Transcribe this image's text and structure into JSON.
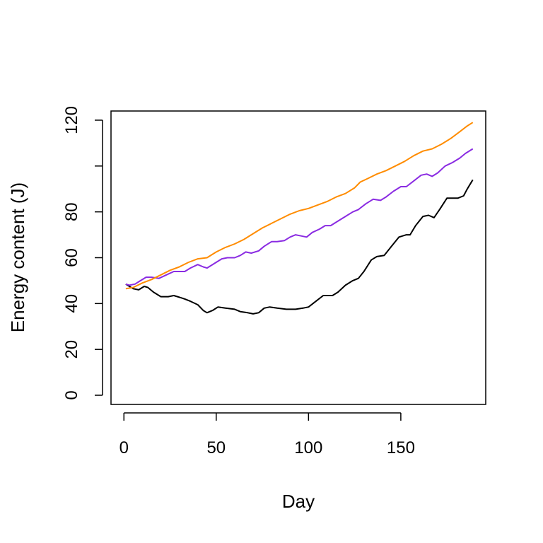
{
  "chart_data": {
    "type": "line",
    "title": "",
    "xlabel": "Day",
    "ylabel": "Energy content (J)",
    "xlim": [
      -7,
      196
    ],
    "ylim": [
      -4,
      124
    ],
    "x_ticks": [
      0,
      50,
      100,
      150
    ],
    "x_tick_labels": [
      "0",
      "50",
      "100",
      "150"
    ],
    "y_ticks": [
      0,
      20,
      40,
      60,
      80,
      100,
      120
    ],
    "y_tick_labels": [
      "0",
      "20",
      "40",
      "60",
      "80",
      "",
      "120"
    ],
    "grid": false,
    "legend": "none",
    "series": [
      {
        "color": "#000000",
        "points": [
          [
            1,
            48.5
          ],
          [
            5,
            46.5
          ],
          [
            8,
            46
          ],
          [
            11,
            47.5
          ],
          [
            13,
            47
          ],
          [
            16,
            45
          ],
          [
            20,
            43
          ],
          [
            24,
            43
          ],
          [
            27,
            43.5
          ],
          [
            31,
            42.5
          ],
          [
            33,
            42
          ],
          [
            36,
            41
          ],
          [
            40,
            39.5
          ],
          [
            43,
            37
          ],
          [
            45,
            36
          ],
          [
            48,
            37
          ],
          [
            51,
            38.5
          ],
          [
            55,
            38
          ],
          [
            60,
            37.5
          ],
          [
            63,
            36.5
          ],
          [
            67,
            36
          ],
          [
            70,
            35.5
          ],
          [
            73,
            36
          ],
          [
            76,
            38
          ],
          [
            79,
            38.5
          ],
          [
            83,
            38
          ],
          [
            88,
            37.5
          ],
          [
            93,
            37.5
          ],
          [
            97,
            38
          ],
          [
            100,
            38.5
          ],
          [
            104,
            41
          ],
          [
            108,
            43.5
          ],
          [
            113,
            43.5
          ],
          [
            116,
            45
          ],
          [
            120,
            48
          ],
          [
            124,
            50
          ],
          [
            127,
            51
          ],
          [
            130,
            54
          ],
          [
            134,
            59
          ],
          [
            137,
            60.5
          ],
          [
            141,
            61
          ],
          [
            145,
            65
          ],
          [
            149,
            69
          ],
          [
            153,
            70
          ],
          [
            155,
            70
          ],
          [
            158,
            74
          ],
          [
            162,
            78
          ],
          [
            165,
            78.5
          ],
          [
            168,
            77.5
          ],
          [
            171,
            81
          ],
          [
            175,
            86
          ],
          [
            178,
            86
          ],
          [
            181,
            86
          ],
          [
            184,
            87
          ],
          [
            186,
            90
          ],
          [
            189,
            94
          ]
        ]
      },
      {
        "color": "#8a2be2",
        "points": [
          [
            1,
            48.5
          ],
          [
            3,
            48
          ],
          [
            6,
            48.5
          ],
          [
            9,
            50
          ],
          [
            12,
            51.5
          ],
          [
            15,
            51.5
          ],
          [
            19,
            51
          ],
          [
            23,
            52.5
          ],
          [
            27,
            54
          ],
          [
            30,
            54
          ],
          [
            33,
            54
          ],
          [
            36,
            55.5
          ],
          [
            40,
            57
          ],
          [
            43,
            56
          ],
          [
            45,
            55.5
          ],
          [
            50,
            58
          ],
          [
            53,
            59.5
          ],
          [
            56,
            60
          ],
          [
            60,
            60
          ],
          [
            63,
            61
          ],
          [
            66,
            62.5
          ],
          [
            69,
            62
          ],
          [
            73,
            63
          ],
          [
            76,
            65
          ],
          [
            80,
            67
          ],
          [
            83,
            67
          ],
          [
            87,
            67.5
          ],
          [
            90,
            69
          ],
          [
            93,
            70
          ],
          [
            96,
            69.5
          ],
          [
            99,
            69
          ],
          [
            102,
            71
          ],
          [
            106,
            72.5
          ],
          [
            109,
            74
          ],
          [
            112,
            74
          ],
          [
            116,
            76
          ],
          [
            120,
            78
          ],
          [
            124,
            80
          ],
          [
            127,
            81
          ],
          [
            131,
            83.5
          ],
          [
            135,
            85.5
          ],
          [
            139,
            85
          ],
          [
            142,
            86.5
          ],
          [
            146,
            89
          ],
          [
            150,
            91
          ],
          [
            153,
            91
          ],
          [
            157,
            93.5
          ],
          [
            161,
            96
          ],
          [
            164,
            96.5
          ],
          [
            167,
            95.5
          ],
          [
            170,
            97
          ],
          [
            174,
            100
          ],
          [
            178,
            101.5
          ],
          [
            182,
            103.5
          ],
          [
            185,
            105.5
          ],
          [
            189,
            107.5
          ]
        ]
      },
      {
        "color": "#ff8c00",
        "points": [
          [
            1,
            46.5
          ],
          [
            5,
            47
          ],
          [
            10,
            49
          ],
          [
            15,
            50.5
          ],
          [
            20,
            52.5
          ],
          [
            25,
            54.5
          ],
          [
            30,
            56
          ],
          [
            35,
            58
          ],
          [
            40,
            59.5
          ],
          [
            45,
            60
          ],
          [
            50,
            62.5
          ],
          [
            55,
            64.5
          ],
          [
            60,
            66
          ],
          [
            65,
            68
          ],
          [
            70,
            70.5
          ],
          [
            75,
            73
          ],
          [
            80,
            75
          ],
          [
            85,
            77
          ],
          [
            90,
            79
          ],
          [
            95,
            80.5
          ],
          [
            100,
            81.5
          ],
          [
            105,
            83
          ],
          [
            110,
            84.5
          ],
          [
            115,
            86.5
          ],
          [
            120,
            88
          ],
          [
            125,
            90.5
          ],
          [
            128,
            93
          ],
          [
            132,
            94.5
          ],
          [
            137,
            96.5
          ],
          [
            142,
            98
          ],
          [
            147,
            100
          ],
          [
            152,
            102
          ],
          [
            157,
            104.5
          ],
          [
            162,
            106.5
          ],
          [
            167,
            107.5
          ],
          [
            172,
            109.5
          ],
          [
            177,
            112
          ],
          [
            182,
            115
          ],
          [
            186,
            117.5
          ],
          [
            189,
            119
          ]
        ]
      }
    ]
  }
}
